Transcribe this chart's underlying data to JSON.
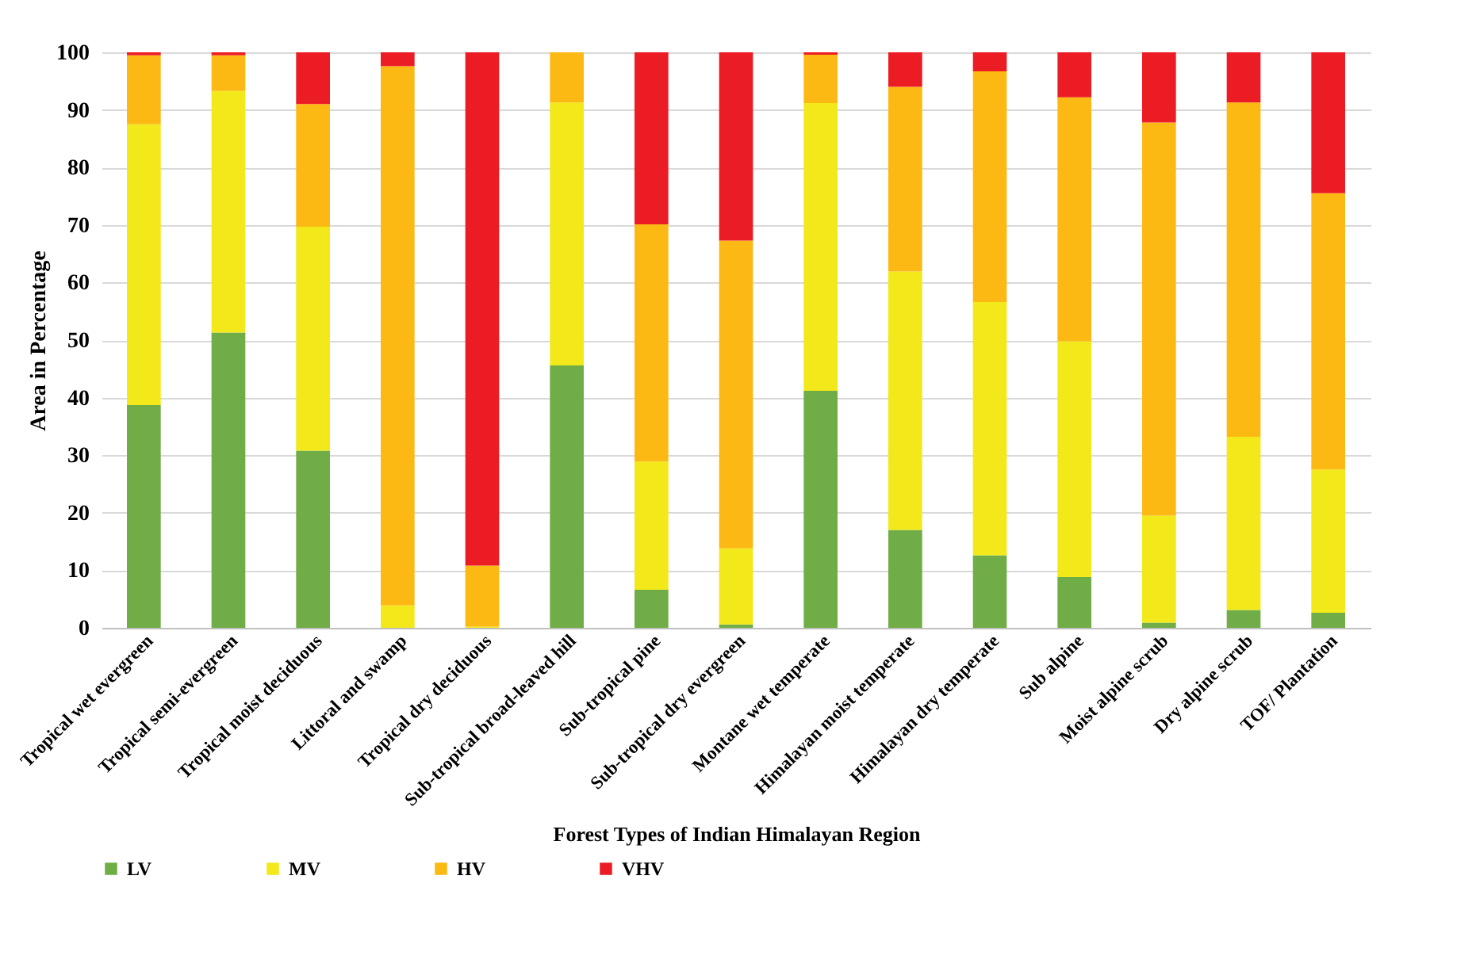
{
  "chart_data": {
    "type": "bar",
    "stacked": true,
    "xlabel": "Forest Types of Indian Himalayan Region",
    "ylabel": "Area in Percentage",
    "categories": [
      "Tropical wet evergreen",
      "Tropical semi-evergreen",
      "Tropical moist deciduous",
      "Littoral and swamp",
      "Tropical dry deciduous",
      "Sub-tropical broad-leaved hill",
      "Sub-tropical pine",
      "Sub-tropical dry evergreen",
      "Montane wet temperate",
      "Himalayan moist temperate",
      "Himalayan dry temperate",
      "Sub alpine",
      "Moist alpine scrub",
      "Dry alpine scrub",
      "TOF/ Plantation"
    ],
    "series": [
      {
        "name": "LV",
        "color": "#70ad47",
        "values": [
          38.7,
          51.3,
          30.8,
          0,
          0,
          45.6,
          6.6,
          0.6,
          41.2,
          17,
          12.6,
          8.8,
          0.9,
          3.1,
          2.6
        ]
      },
      {
        "name": "MV",
        "color": "#f2e81a",
        "values": [
          48.8,
          42,
          38.9,
          3.9,
          0.2,
          45.7,
          22.3,
          13.2,
          50,
          44.9,
          44,
          41,
          18.6,
          30.1,
          24.9
        ]
      },
      {
        "name": "HV",
        "color": "#fdb913",
        "values": [
          12,
          6.2,
          21.3,
          93.7,
          10.6,
          8.7,
          41.2,
          53.5,
          8.4,
          32.1,
          40.1,
          42.4,
          68.3,
          58.1,
          48
        ]
      },
      {
        "name": "VHV",
        "color": "#ec1c24",
        "values": [
          0.5,
          0.5,
          9,
          2.4,
          89.2,
          0,
          29.9,
          32.7,
          0.4,
          6,
          3.3,
          7.8,
          12.2,
          8.7,
          24.5
        ]
      }
    ],
    "ylim": [
      0,
      100
    ],
    "yticks": [
      0,
      10,
      20,
      30,
      40,
      50,
      60,
      70,
      80,
      90,
      100
    ],
    "grid": "y",
    "legend": "bottom"
  }
}
